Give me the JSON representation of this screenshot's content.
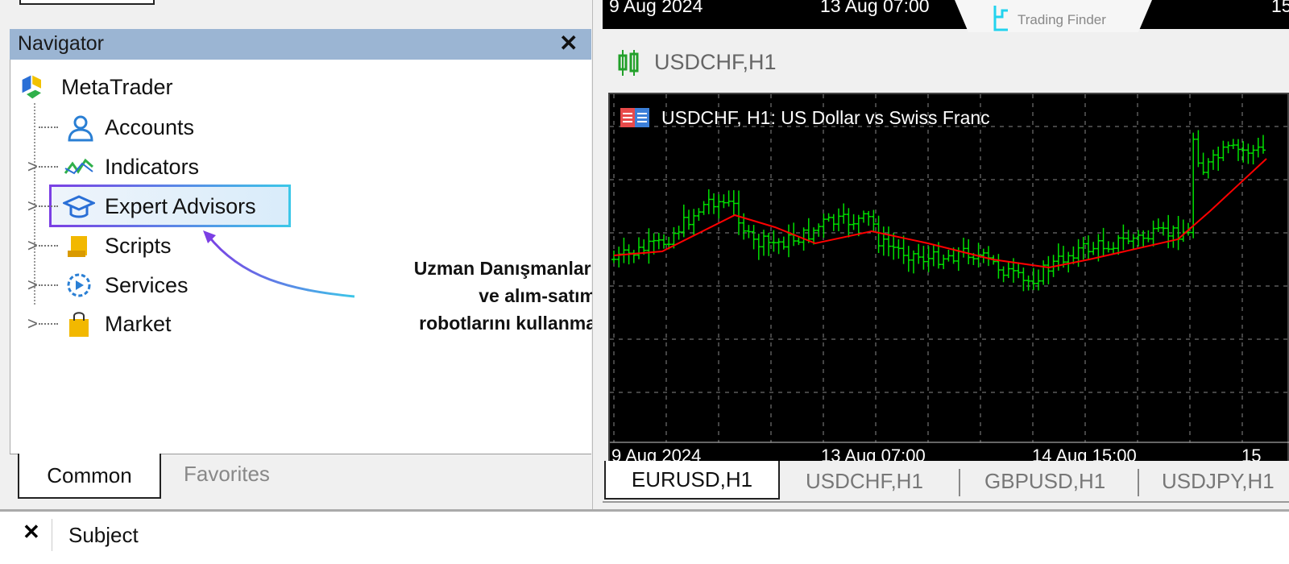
{
  "navigator": {
    "title": "Navigator",
    "close": "✕",
    "root": "MetaTrader",
    "items": [
      {
        "label": "Accounts",
        "icon": "accounts-icon"
      },
      {
        "label": "Indicators",
        "icon": "indicators-icon"
      },
      {
        "label": "Expert Advisors",
        "icon": "expert-advisors-icon"
      },
      {
        "label": "Scripts",
        "icon": "scripts-icon"
      },
      {
        "label": "Services",
        "icon": "services-icon"
      },
      {
        "label": "Market",
        "icon": "market-icon"
      }
    ],
    "tabs": [
      "Common",
      "Favorites"
    ]
  },
  "annotation": {
    "lines": [
      "Uzman Danışmanları",
      "ve alım-satım",
      "robotlarını kullanma"
    ]
  },
  "top_strip": {
    "dates": [
      "9 Aug 2024",
      "13 Aug 07:00",
      "15"
    ]
  },
  "logo": "Trading Finder",
  "chart_window": {
    "title": "USDCHF,H1",
    "chart_label": "USDCHF, H1:  US Dollar vs Swiss Franc",
    "x_ticks": [
      "9 Aug 2024",
      "13 Aug 07:00",
      "14 Aug 15:00",
      "15"
    ],
    "colors": {
      "candles": "#00e000",
      "ma": "#ff0000",
      "background": "#000000"
    }
  },
  "chart_tabs": [
    "EURUSD,H1",
    "USDCHF,H1",
    "GBPUSD,H1",
    "USDJPY,H1"
  ],
  "active_chart_tab": "EURUSD,H1",
  "bottom": {
    "close": "✕",
    "subject": "Subject"
  }
}
